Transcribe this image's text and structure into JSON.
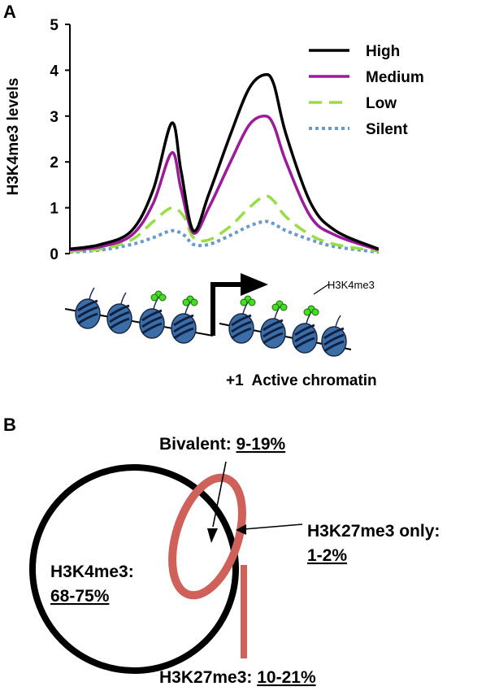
{
  "panel_a": {
    "letter": "A",
    "chart_data": {
      "type": "line",
      "ylabel": "H3K4me3 levels",
      "xlabel": "",
      "title": "",
      "ylim": [
        0,
        5
      ],
      "yticks": [
        0,
        1,
        2,
        3,
        4,
        5
      ],
      "x_domain": [
        0,
        100
      ],
      "series": [
        {
          "name": "High",
          "color": "#000000",
          "dash": "solid",
          "x": [
            0,
            10,
            20,
            27,
            33,
            36,
            40,
            45,
            52,
            58,
            63,
            66,
            70,
            78,
            86,
            100
          ],
          "y": [
            0.1,
            0.2,
            0.5,
            1.4,
            2.85,
            1.8,
            0.5,
            1.3,
            2.6,
            3.6,
            3.9,
            3.7,
            2.6,
            1.1,
            0.5,
            0.1
          ]
        },
        {
          "name": "Medium",
          "color": "#9B1B9B",
          "dash": "solid",
          "x": [
            0,
            10,
            20,
            27,
            33,
            36,
            40,
            45,
            52,
            58,
            63,
            66,
            70,
            78,
            86,
            100
          ],
          "y": [
            0.08,
            0.15,
            0.4,
            1.1,
            2.2,
            1.4,
            0.45,
            1.0,
            2.0,
            2.8,
            3.0,
            2.8,
            2.0,
            0.8,
            0.4,
            0.08
          ]
        },
        {
          "name": "Low",
          "color": "#99DD44",
          "dash": "dashed",
          "x": [
            0,
            10,
            20,
            27,
            33,
            37,
            40,
            45,
            52,
            58,
            63,
            66,
            70,
            78,
            86,
            100
          ],
          "y": [
            0.05,
            0.1,
            0.3,
            0.7,
            1.0,
            0.8,
            0.35,
            0.3,
            0.6,
            1.0,
            1.25,
            1.15,
            0.8,
            0.4,
            0.2,
            0.05
          ]
        },
        {
          "name": "Silent",
          "color": "#6A9AC8",
          "dash": "dotted",
          "x": [
            0,
            10,
            20,
            27,
            33,
            37,
            40,
            45,
            52,
            58,
            63,
            66,
            70,
            78,
            86,
            100
          ],
          "y": [
            0.03,
            0.08,
            0.2,
            0.35,
            0.5,
            0.4,
            0.2,
            0.2,
            0.4,
            0.6,
            0.7,
            0.65,
            0.5,
            0.3,
            0.15,
            0.03
          ]
        }
      ],
      "legend_position": "top-right"
    },
    "chromatin": {
      "mark_label": "H3K4me3",
      "caption": "+1  Active chromatin",
      "nucleosome_color": "#3B6EA8",
      "mark_color": "#44DD22"
    }
  },
  "panel_b": {
    "letter": "B",
    "bivalent_label": "Bivalent: ",
    "bivalent_value": "9-19%",
    "h3k4_label": "H3K4me3:",
    "h3k4_value": "68-75%",
    "h3k27_only_label": "H3K27me3 only:",
    "h3k27_only_value": "1-2%",
    "h3k27_label": "H3K27me3: ",
    "h3k27_value": "10-21%",
    "h3k4_circle_color": "#000000",
    "h3k27_circle_color": "#D0605A"
  }
}
